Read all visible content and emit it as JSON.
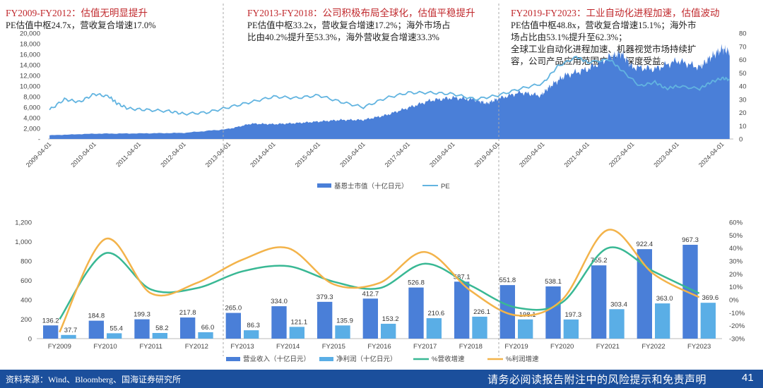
{
  "annotations": [
    {
      "heading": "FY2009-FY2012：估值无明显提升",
      "lines": [
        "PE估值中枢24.7x，营收复合增速17.0%"
      ]
    },
    {
      "heading": "FY2013-FY2018：公司积极布局全球化，估值平稳提升",
      "lines": [
        "PE估值中枢33.2x，营收复合增速17.2%；海外市场占",
        "比由40.2%提升至53.3%，海外营收复合增速33.3%"
      ]
    },
    {
      "heading": "FY2019-FY2023：工业自动化进程加速，估值波动",
      "lines": [
        "PE估值中枢48.8x，营收复合增速15.1%；海外市",
        "场占比由53.1%提升至62.3%；",
        "全球工业自动化进程加速、机器视觉市场持续扩",
        "容，公司产品应用范围广阔、深度受益。"
      ]
    }
  ],
  "footer": {
    "source": "资料来源：Wind、Bloomberg、国海证券研究所",
    "disclaimer": "请务必阅读报告附注中的风险提示和免责声明",
    "page": "41"
  },
  "colors": {
    "bar": "#4a7fd8",
    "bar_light": "#5aaee6",
    "pe_line": "#62b4e0",
    "rev_growth": "#39b894",
    "profit_growth": "#f3b34a",
    "divider": "#aaaaaa",
    "footer_bg": "#1b4f9c"
  },
  "chart_data": [
    {
      "type": "area",
      "x_ticks": [
        "2009-04-01",
        "2010-04-01",
        "2011-04-01",
        "2012-04-01",
        "2013-04-01",
        "2014-04-01",
        "2015-04-01",
        "2016-04-01",
        "2017-04-01",
        "2018-04-01",
        "2019-04-01",
        "2020-04-01",
        "2021-04-01",
        "2022-04-01",
        "2023-04-01",
        "2024-04-01"
      ],
      "y_left_ticks": [
        "20,000",
        "18,000",
        "16,000",
        "14,000",
        "12,000",
        "10,000",
        "8,000",
        "6,000",
        "4,000",
        "2,000",
        "-"
      ],
      "y_right_ticks": [
        "80",
        "70",
        "60",
        "50",
        "40",
        "30",
        "20",
        "10",
        "0"
      ],
      "ylim_left": [
        0,
        20000
      ],
      "ylim_right": [
        0,
        80
      ],
      "legend_position": "bottom",
      "series": [
        {
          "name": "基恩士市值（十亿日元）",
          "type": "area",
          "axis": "left",
          "points": [
            [
              "2009-04-01",
              700
            ],
            [
              "2010-04-01",
              1000
            ],
            [
              "2011-04-01",
              1050
            ],
            [
              "2012-04-01",
              1150
            ],
            [
              "2013-04-01",
              1900
            ],
            [
              "2013-10-01",
              2900
            ],
            [
              "2014-04-01",
              2800
            ],
            [
              "2014-10-01",
              3000
            ],
            [
              "2015-04-01",
              3300
            ],
            [
              "2015-10-01",
              3600
            ],
            [
              "2016-04-01",
              3600
            ],
            [
              "2016-10-01",
              4500
            ],
            [
              "2017-04-01",
              5900
            ],
            [
              "2017-10-01",
              7300
            ],
            [
              "2018-04-01",
              7800
            ],
            [
              "2018-10-01",
              7400
            ],
            [
              "2019-01-01",
              6700
            ],
            [
              "2019-04-01",
              7600
            ],
            [
              "2019-10-01",
              8800
            ],
            [
              "2020-03-15",
              8200
            ],
            [
              "2020-06-01",
              10000
            ],
            [
              "2020-10-01",
              12000
            ],
            [
              "2021-04-01",
              13200
            ],
            [
              "2021-10-01",
              15500
            ],
            [
              "2022-01-01",
              16200
            ],
            [
              "2022-04-01",
              13600
            ],
            [
              "2022-10-01",
              13200
            ],
            [
              "2023-04-01",
              14800
            ],
            [
              "2023-10-01",
              13500
            ],
            [
              "2024-01-01",
              15500
            ],
            [
              "2024-04-01",
              17000
            ],
            [
              "2024-06-01",
              16500
            ]
          ]
        },
        {
          "name": "PE",
          "type": "line",
          "axis": "right",
          "points": [
            [
              "2009-04-01",
              22
            ],
            [
              "2009-08-01",
              30
            ],
            [
              "2009-12-01",
              28
            ],
            [
              "2010-04-01",
              34
            ],
            [
              "2010-08-01",
              32
            ],
            [
              "2010-10-01",
              27
            ],
            [
              "2011-01-01",
              23
            ],
            [
              "2011-06-01",
              22
            ],
            [
              "2011-12-01",
              21
            ],
            [
              "2012-04-01",
              19
            ],
            [
              "2012-10-01",
              20
            ],
            [
              "2013-04-01",
              24
            ],
            [
              "2013-10-01",
              28
            ],
            [
              "2014-04-01",
              32
            ],
            [
              "2014-10-01",
              31
            ],
            [
              "2015-04-01",
              33
            ],
            [
              "2015-10-01",
              28
            ],
            [
              "2016-04-01",
              24
            ],
            [
              "2016-10-01",
              31
            ],
            [
              "2017-04-01",
              35
            ],
            [
              "2017-10-01",
              35
            ],
            [
              "2018-04-01",
              34
            ],
            [
              "2018-10-01",
              30
            ],
            [
              "2019-04-01",
              33
            ],
            [
              "2019-10-01",
              38
            ],
            [
              "2020-04-01",
              42
            ],
            [
              "2020-08-01",
              55
            ],
            [
              "2021-01-01",
              62
            ],
            [
              "2021-04-01",
              58
            ],
            [
              "2021-10-01",
              60
            ],
            [
              "2022-01-01",
              52
            ],
            [
              "2022-06-01",
              40
            ],
            [
              "2022-10-01",
              43
            ],
            [
              "2023-01-01",
              38
            ],
            [
              "2023-04-01",
              40
            ],
            [
              "2023-10-01",
              38
            ],
            [
              "2024-01-01",
              43
            ],
            [
              "2024-04-01",
              46
            ],
            [
              "2024-06-01",
              45
            ]
          ]
        }
      ]
    },
    {
      "type": "bar",
      "categories": [
        "FY2009",
        "FY2010",
        "FY2011",
        "FY2012",
        "FY2013",
        "FY2014",
        "FY2015",
        "FY2016",
        "FY2017",
        "FY2018",
        "FY2019",
        "FY2020",
        "FY2021",
        "FY2022",
        "FY2023"
      ],
      "y_left_ticks": [
        "1,200",
        "1,000",
        "800",
        "600",
        "400",
        "200",
        "0"
      ],
      "y_right_ticks": [
        "60%",
        "50%",
        "40%",
        "30%",
        "20%",
        "10%",
        "0%",
        "-10%",
        "-20%",
        "-30%"
      ],
      "ylim_left": [
        0,
        1200
      ],
      "ylim_right": [
        -30,
        60
      ],
      "legend_position": "bottom",
      "series": [
        {
          "name": "营业收入（十亿日元）",
          "type": "bar",
          "axis": "left",
          "values": [
            136.2,
            184.8,
            199.3,
            217.8,
            265.0,
            334.0,
            379.3,
            412.7,
            526.8,
            587.1,
            551.8,
            538.1,
            755.2,
            922.4,
            967.3
          ],
          "labels": [
            "136.2",
            "184.8",
            "199.3",
            "217.8",
            "265.0",
            "334.0",
            "379.3",
            "412.7",
            "526.8",
            "587.1",
            "551.8",
            "538.1",
            "755.2",
            "922.4",
            "967.3"
          ]
        },
        {
          "name": "净利润（十亿日元）",
          "type": "bar",
          "axis": "left",
          "values": [
            37.7,
            55.4,
            58.2,
            66.0,
            86.3,
            121.1,
            135.9,
            153.2,
            210.6,
            226.1,
            198.1,
            197.3,
            303.4,
            363.0,
            369.6
          ],
          "labels": [
            "37.7",
            "55.4",
            "58.2",
            "66.0",
            "86.3",
            "121.1",
            "135.9",
            "153.2",
            "210.6",
            "226.1",
            "198.1",
            "197.3",
            "303.4",
            "363.0",
            "369.6"
          ]
        },
        {
          "name": "%营收增速",
          "type": "line",
          "axis": "right",
          "values": [
            -15,
            36,
            8,
            9,
            22,
            26,
            14,
            9,
            28,
            11,
            -6,
            -2,
            40,
            22,
            5
          ]
        },
        {
          "name": "%利润增速",
          "type": "line",
          "axis": "right",
          "values": [
            -25,
            47,
            5,
            13,
            31,
            40,
            12,
            13,
            37,
            7,
            -12,
            0,
            54,
            20,
            2
          ]
        }
      ]
    }
  ]
}
